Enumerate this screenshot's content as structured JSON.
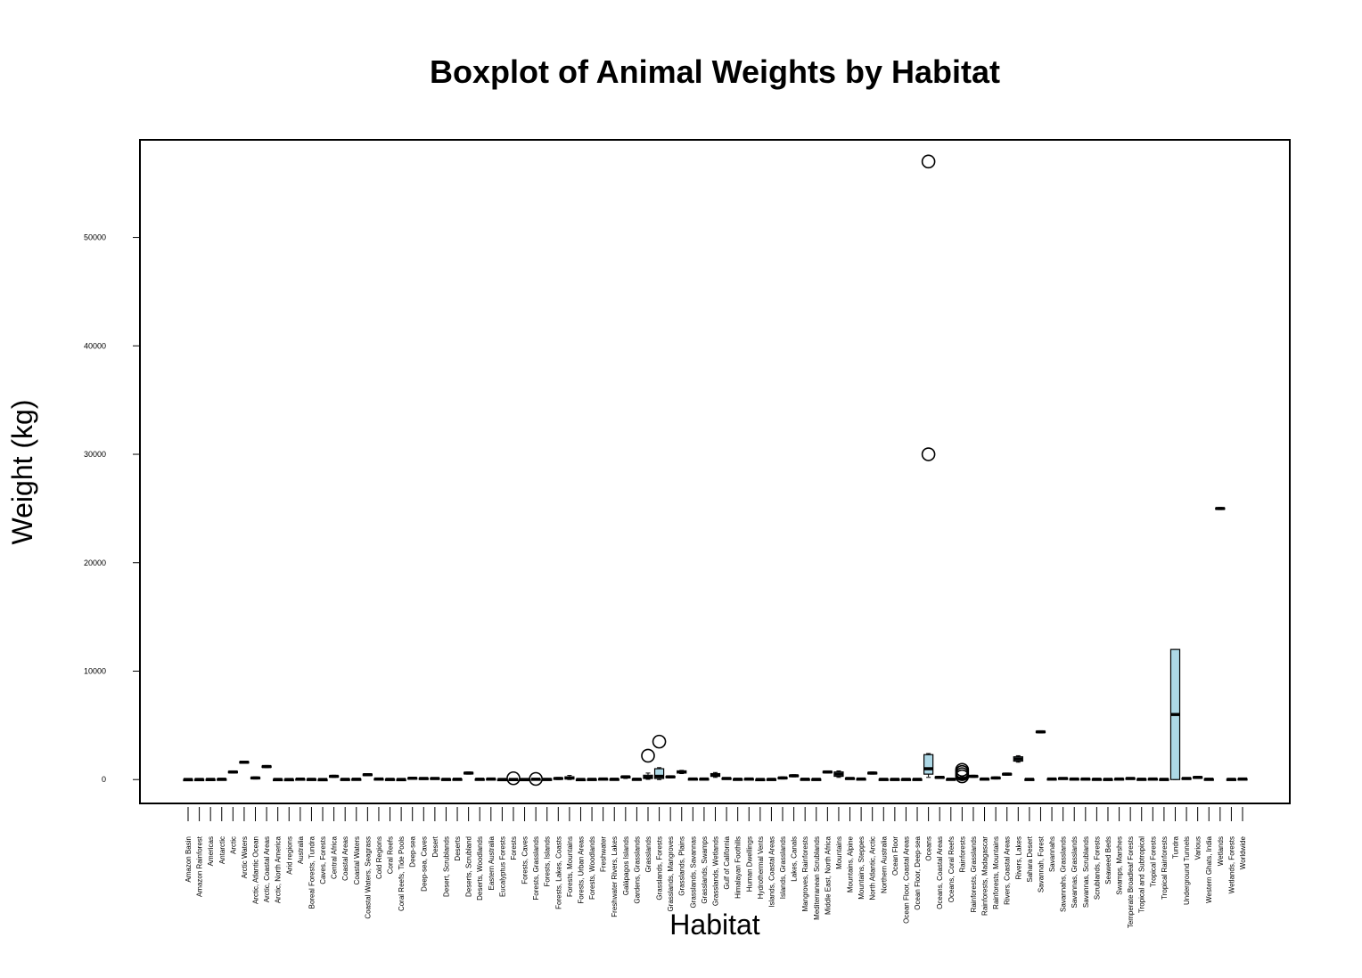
{
  "chart_data": {
    "type": "boxplot",
    "title": "Boxplot of Animal Weights by Habitat",
    "xlabel": "Habitat",
    "ylabel": "Weight (kg)",
    "ylim": [
      -2200,
      59000
    ],
    "yticks": [
      0,
      10000,
      20000,
      30000,
      40000,
      50000
    ],
    "ytick_labels": [
      "0",
      "10000",
      "20000",
      "30000",
      "40000",
      "50000"
    ],
    "box_fill": "#add8e6",
    "grid": false,
    "categories": [
      "Amazon Basin",
      "Amazon Rainforest",
      "Americas",
      "Antarctic",
      "Arctic",
      "Arctic Waters",
      "Arctic, Atlantic Ocean",
      "Arctic, Coastal Areas",
      "Arctic, North America",
      "Arid regions",
      "Australia",
      "Boreal Forests, Tundra",
      "Caves, Forests",
      "Central Africa",
      "Coastal Areas",
      "Coastal Waters",
      "Coastal Waters, Seagrass",
      "Cold Regions",
      "Coral Reefs",
      "Coral Reefs, Tide Pools",
      "Deep-sea",
      "Deep-sea, Caves",
      "Desert",
      "Desert, Scrublands",
      "Deserts",
      "Deserts, Scrubland",
      "Deserts, Woodlands",
      "Eastern Australia",
      "Eucalyptus Forests",
      "Forests",
      "Forests, Caves",
      "Forests, Grasslands",
      "Forests, Islands",
      "Forests, Lakes, Coasts",
      "Forests, Mountains",
      "Forests, Urban Areas",
      "Forests, Woodlands",
      "Freshwater",
      "Freshwater Rivers, Lakes",
      "Galápagos Islands",
      "Gardens, Grasslands",
      "Grasslands",
      "Grasslands, Forests",
      "Grasslands, Mangroves",
      "Grasslands, Plains",
      "Grasslands, Savannas",
      "Grasslands, Swamps",
      "Grasslands, Wetlands",
      "Gulf of California",
      "Himalayan Foothills",
      "Human Dwellings",
      "Hydrothermal Vents",
      "Islands, Coastal Areas",
      "Islands, Grasslands",
      "Lakes, Canals",
      "Mangroves, Rainforests",
      "Mediterranean Scrublands",
      "Middle East, North Africa",
      "Mountains",
      "Mountains, Alpine",
      "Mountains, Steppes",
      "North Atlantic, Arctic",
      "Northern Australia",
      "Ocean Floor",
      "Ocean Floor, Coastal Areas",
      "Ocean Floor, Deep-sea",
      "Oceans",
      "Oceans, Coastal Areas",
      "Oceans, Coral Reefs",
      "Rainforests",
      "Rainforests, Grasslands",
      "Rainforests, Madagascar",
      "Rainforests, Mountains",
      "Rivers, Coastal Areas",
      "Rivers, Lakes",
      "Sahara Desert",
      "Savannah, Forest",
      "Savannahs",
      "Savannahs, Grasslands",
      "Savannas, Grasslands",
      "Savannas, Scrublands",
      "Scrublands, Forests",
      "Seaweed Beds",
      "Swamps, Marshes",
      "Temperate Broadleaf Forests",
      "Tropical and Subtropical",
      "Tropical Forests",
      "Tropical Rainforests",
      "Tundra",
      "Underground Tunnels",
      "Various",
      "Western Ghats, India",
      "Wetlands",
      "Wetlands, Forests",
      "Worldwide"
    ],
    "boxes": [
      {
        "median": 5,
        "q1": 0,
        "q3": 15,
        "min": 0,
        "max": 25,
        "outliers": []
      },
      {
        "median": 10,
        "q1": 0,
        "q3": 20,
        "min": 0,
        "max": 30,
        "outliers": []
      },
      {
        "median": 15,
        "q1": 0,
        "q3": 30,
        "min": 0,
        "max": 40,
        "outliers": []
      },
      {
        "median": 30,
        "q1": 10,
        "q3": 50,
        "min": 0,
        "max": 60,
        "outliers": []
      },
      {
        "median": 700,
        "q1": 650,
        "q3": 750,
        "min": 600,
        "max": 800,
        "outliers": []
      },
      {
        "median": 1600,
        "q1": 1550,
        "q3": 1650,
        "min": 1500,
        "max": 1700,
        "outliers": []
      },
      {
        "median": 150,
        "q1": 100,
        "q3": 200,
        "min": 50,
        "max": 250,
        "outliers": []
      },
      {
        "median": 1200,
        "q1": 1150,
        "q3": 1250,
        "min": 1100,
        "max": 1300,
        "outliers": []
      },
      {
        "median": 10,
        "q1": 0,
        "q3": 20,
        "min": 0,
        "max": 30,
        "outliers": []
      },
      {
        "median": 5,
        "q1": 0,
        "q3": 15,
        "min": 0,
        "max": 20,
        "outliers": []
      },
      {
        "median": 40,
        "q1": 20,
        "q3": 60,
        "min": 0,
        "max": 80,
        "outliers": []
      },
      {
        "median": 20,
        "q1": 0,
        "q3": 40,
        "min": 0,
        "max": 50,
        "outliers": []
      },
      {
        "median": 5,
        "q1": 0,
        "q3": 15,
        "min": 0,
        "max": 20,
        "outliers": []
      },
      {
        "median": 300,
        "q1": 250,
        "q3": 350,
        "min": 200,
        "max": 400,
        "outliers": []
      },
      {
        "median": 20,
        "q1": 0,
        "q3": 40,
        "min": 0,
        "max": 50,
        "outliers": []
      },
      {
        "median": 30,
        "q1": 10,
        "q3": 50,
        "min": 0,
        "max": 60,
        "outliers": []
      },
      {
        "median": 450,
        "q1": 400,
        "q3": 500,
        "min": 350,
        "max": 550,
        "outliers": []
      },
      {
        "median": 50,
        "q1": 20,
        "q3": 80,
        "min": 0,
        "max": 100,
        "outliers": []
      },
      {
        "median": 20,
        "q1": 0,
        "q3": 40,
        "min": 0,
        "max": 50,
        "outliers": []
      },
      {
        "median": 10,
        "q1": 0,
        "q3": 20,
        "min": 0,
        "max": 30,
        "outliers": []
      },
      {
        "median": 120,
        "q1": 80,
        "q3": 160,
        "min": 50,
        "max": 200,
        "outliers": []
      },
      {
        "median": 100,
        "q1": 70,
        "q3": 130,
        "min": 40,
        "max": 160,
        "outliers": []
      },
      {
        "median": 100,
        "q1": 60,
        "q3": 140,
        "min": 30,
        "max": 170,
        "outliers": []
      },
      {
        "median": 20,
        "q1": 0,
        "q3": 40,
        "min": 0,
        "max": 50,
        "outliers": []
      },
      {
        "median": 30,
        "q1": 10,
        "q3": 50,
        "min": 0,
        "max": 60,
        "outliers": []
      },
      {
        "median": 600,
        "q1": 550,
        "q3": 650,
        "min": 500,
        "max": 700,
        "outliers": []
      },
      {
        "median": 30,
        "q1": 10,
        "q3": 50,
        "min": 0,
        "max": 60,
        "outliers": []
      },
      {
        "median": 50,
        "q1": 20,
        "q3": 80,
        "min": 0,
        "max": 100,
        "outliers": []
      },
      {
        "median": 10,
        "q1": 0,
        "q3": 20,
        "min": 0,
        "max": 30,
        "outliers": []
      },
      {
        "median": 10,
        "q1": 0,
        "q3": 30,
        "min": 0,
        "max": 60,
        "outliers": [
          120
        ]
      },
      {
        "median": 10,
        "q1": 0,
        "q3": 20,
        "min": 0,
        "max": 40,
        "outliers": []
      },
      {
        "median": 30,
        "q1": 10,
        "q3": 60,
        "min": 0,
        "max": 90,
        "outliers": [
          60
        ]
      },
      {
        "median": 20,
        "q1": 0,
        "q3": 40,
        "min": 0,
        "max": 50,
        "outliers": []
      },
      {
        "median": 100,
        "q1": 50,
        "q3": 150,
        "min": 0,
        "max": 200,
        "outliers": []
      },
      {
        "median": 150,
        "q1": 50,
        "q3": 250,
        "min": 0,
        "max": 380,
        "outliers": []
      },
      {
        "median": 10,
        "q1": 0,
        "q3": 20,
        "min": 0,
        "max": 30,
        "outliers": []
      },
      {
        "median": 20,
        "q1": 0,
        "q3": 40,
        "min": 0,
        "max": 50,
        "outliers": []
      },
      {
        "median": 50,
        "q1": 20,
        "q3": 80,
        "min": 0,
        "max": 100,
        "outliers": []
      },
      {
        "median": 30,
        "q1": 10,
        "q3": 50,
        "min": 0,
        "max": 60,
        "outliers": []
      },
      {
        "median": 250,
        "q1": 150,
        "q3": 300,
        "min": 100,
        "max": 350,
        "outliers": []
      },
      {
        "median": 30,
        "q1": 10,
        "q3": 50,
        "min": 0,
        "max": 60,
        "outliers": []
      },
      {
        "median": 200,
        "q1": 100,
        "q3": 400,
        "min": 20,
        "max": 600,
        "outliers": [
          2200
        ]
      },
      {
        "median": 300,
        "q1": 100,
        "q3": 1000,
        "min": 0,
        "max": 1100,
        "outliers": [
          3500
        ]
      },
      {
        "median": 250,
        "q1": 200,
        "q3": 300,
        "min": 150,
        "max": 350,
        "outliers": []
      },
      {
        "median": 700,
        "q1": 600,
        "q3": 800,
        "min": 550,
        "max": 850,
        "outliers": []
      },
      {
        "median": 50,
        "q1": 20,
        "q3": 80,
        "min": 0,
        "max": 100,
        "outliers": []
      },
      {
        "median": 50,
        "q1": 20,
        "q3": 80,
        "min": 0,
        "max": 100,
        "outliers": []
      },
      {
        "median": 400,
        "q1": 300,
        "q3": 550,
        "min": 200,
        "max": 650,
        "outliers": []
      },
      {
        "median": 100,
        "q1": 60,
        "q3": 140,
        "min": 30,
        "max": 170,
        "outliers": []
      },
      {
        "median": 30,
        "q1": 10,
        "q3": 50,
        "min": 0,
        "max": 60,
        "outliers": []
      },
      {
        "median": 50,
        "q1": 20,
        "q3": 80,
        "min": 0,
        "max": 100,
        "outliers": []
      },
      {
        "median": 10,
        "q1": 0,
        "q3": 20,
        "min": 0,
        "max": 30,
        "outliers": []
      },
      {
        "median": 20,
        "q1": 0,
        "q3": 40,
        "min": 0,
        "max": 50,
        "outliers": []
      },
      {
        "median": 150,
        "q1": 100,
        "q3": 200,
        "min": 50,
        "max": 250,
        "outliers": []
      },
      {
        "median": 350,
        "q1": 300,
        "q3": 400,
        "min": 250,
        "max": 450,
        "outliers": []
      },
      {
        "median": 30,
        "q1": 10,
        "q3": 50,
        "min": 0,
        "max": 60,
        "outliers": []
      },
      {
        "median": 20,
        "q1": 0,
        "q3": 40,
        "min": 0,
        "max": 50,
        "outliers": []
      },
      {
        "median": 700,
        "q1": 650,
        "q3": 750,
        "min": 600,
        "max": 800,
        "outliers": []
      },
      {
        "median": 500,
        "q1": 300,
        "q3": 700,
        "min": 200,
        "max": 800,
        "outliers": []
      },
      {
        "median": 100,
        "q1": 60,
        "q3": 140,
        "min": 30,
        "max": 170,
        "outliers": []
      },
      {
        "median": 50,
        "q1": 20,
        "q3": 80,
        "min": 0,
        "max": 100,
        "outliers": []
      },
      {
        "median": 600,
        "q1": 550,
        "q3": 650,
        "min": 500,
        "max": 700,
        "outliers": []
      },
      {
        "median": 20,
        "q1": 0,
        "q3": 40,
        "min": 0,
        "max": 50,
        "outliers": []
      },
      {
        "median": 20,
        "q1": 0,
        "q3": 40,
        "min": 0,
        "max": 50,
        "outliers": []
      },
      {
        "median": 20,
        "q1": 0,
        "q3": 40,
        "min": 0,
        "max": 50,
        "outliers": []
      },
      {
        "median": 20,
        "q1": 0,
        "q3": 40,
        "min": 0,
        "max": 50,
        "outliers": []
      },
      {
        "median": 1000,
        "q1": 500,
        "q3": 2300,
        "min": 200,
        "max": 2400,
        "outliers": [
          30000,
          57000
        ]
      },
      {
        "median": 200,
        "q1": 150,
        "q3": 250,
        "min": 100,
        "max": 300,
        "outliers": []
      },
      {
        "median": 30,
        "q1": 10,
        "q3": 50,
        "min": 0,
        "max": 60,
        "outliers": []
      },
      {
        "median": 100,
        "q1": 50,
        "q3": 200,
        "min": 0,
        "max": 300,
        "outliers": [
          300,
          500,
          700,
          900
        ]
      },
      {
        "median": 300,
        "q1": 250,
        "q3": 350,
        "min": 200,
        "max": 400,
        "outliers": []
      },
      {
        "median": 50,
        "q1": 20,
        "q3": 80,
        "min": 0,
        "max": 100,
        "outliers": []
      },
      {
        "median": 150,
        "q1": 100,
        "q3": 200,
        "min": 50,
        "max": 250,
        "outliers": []
      },
      {
        "median": 500,
        "q1": 450,
        "q3": 550,
        "min": 400,
        "max": 600,
        "outliers": []
      },
      {
        "median": 1900,
        "q1": 1700,
        "q3": 2100,
        "min": 1600,
        "max": 2200,
        "outliers": []
      },
      {
        "median": 20,
        "q1": 0,
        "q3": 40,
        "min": 0,
        "max": 50,
        "outliers": []
      },
      {
        "median": 4400,
        "q1": 4350,
        "q3": 4450,
        "min": 4300,
        "max": 4500,
        "outliers": []
      },
      {
        "median": 50,
        "q1": 20,
        "q3": 80,
        "min": 0,
        "max": 100,
        "outliers": []
      },
      {
        "median": 100,
        "q1": 60,
        "q3": 140,
        "min": 30,
        "max": 170,
        "outliers": []
      },
      {
        "median": 50,
        "q1": 20,
        "q3": 80,
        "min": 0,
        "max": 100,
        "outliers": []
      },
      {
        "median": 50,
        "q1": 20,
        "q3": 80,
        "min": 0,
        "max": 100,
        "outliers": []
      },
      {
        "median": 30,
        "q1": 10,
        "q3": 50,
        "min": 0,
        "max": 60,
        "outliers": []
      },
      {
        "median": 20,
        "q1": 0,
        "q3": 40,
        "min": 0,
        "max": 50,
        "outliers": []
      },
      {
        "median": 50,
        "q1": 20,
        "q3": 80,
        "min": 0,
        "max": 100,
        "outliers": []
      },
      {
        "median": 100,
        "q1": 60,
        "q3": 140,
        "min": 30,
        "max": 170,
        "outliers": []
      },
      {
        "median": 30,
        "q1": 10,
        "q3": 50,
        "min": 0,
        "max": 60,
        "outliers": []
      },
      {
        "median": 50,
        "q1": 20,
        "q3": 80,
        "min": 0,
        "max": 100,
        "outliers": []
      },
      {
        "median": 20,
        "q1": 0,
        "q3": 40,
        "min": 0,
        "max": 50,
        "outliers": []
      },
      {
        "median": 6000,
        "q1": 0,
        "q3": 12000,
        "min": 0,
        "max": 12000,
        "outliers": []
      },
      {
        "median": 100,
        "q1": 60,
        "q3": 140,
        "min": 30,
        "max": 170,
        "outliers": []
      },
      {
        "median": 200,
        "q1": 150,
        "q3": 250,
        "min": 100,
        "max": 300,
        "outliers": []
      },
      {
        "median": 30,
        "q1": 10,
        "q3": 50,
        "min": 0,
        "max": 60,
        "outliers": []
      },
      {
        "median": 25000,
        "q1": 24950,
        "q3": 25050,
        "min": 24900,
        "max": 25100,
        "outliers": []
      },
      {
        "median": 20,
        "q1": 0,
        "q3": 40,
        "min": 0,
        "max": 50,
        "outliers": []
      },
      {
        "median": 50,
        "q1": 20,
        "q3": 80,
        "min": 0,
        "max": 100,
        "outliers": []
      }
    ]
  }
}
